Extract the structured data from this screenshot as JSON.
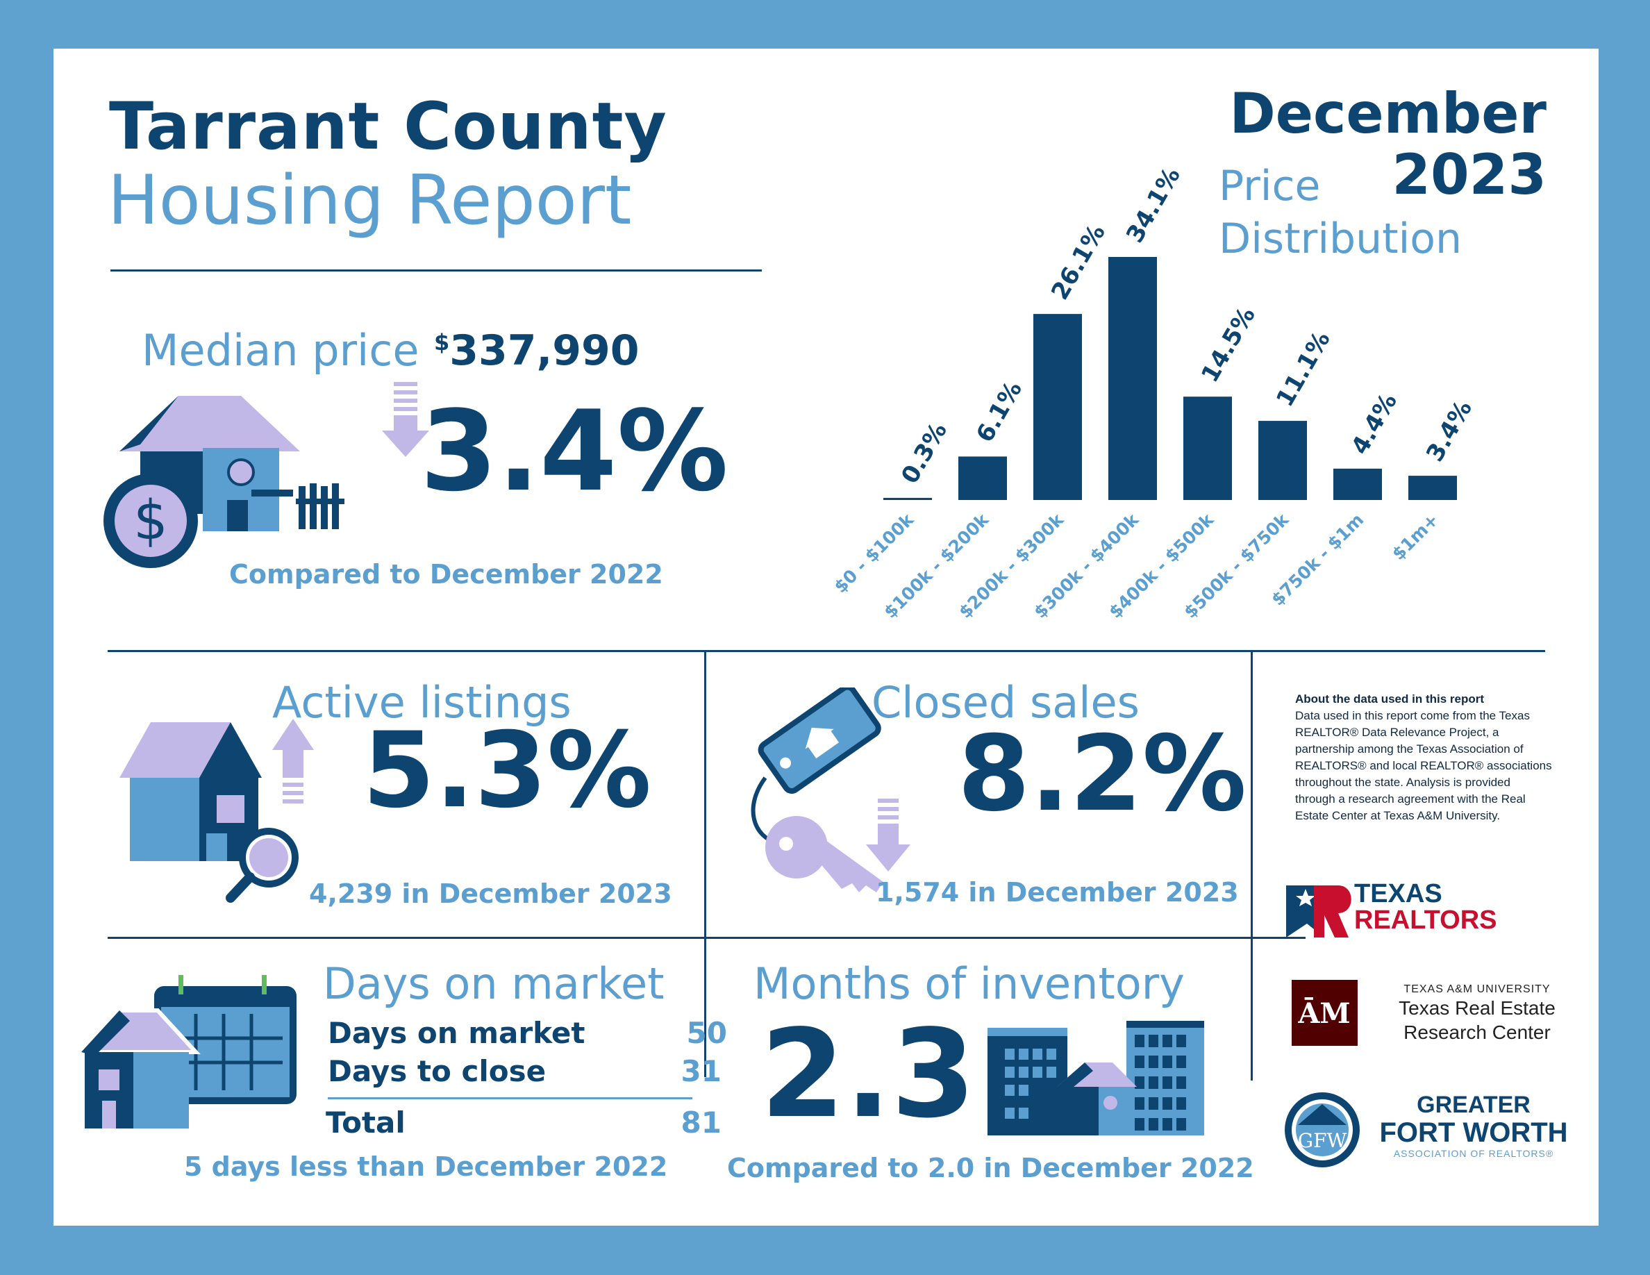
{
  "header": {
    "title_line1": "Tarrant County",
    "title_line2": "Housing Report",
    "month": "December",
    "year": "2023"
  },
  "median": {
    "label": "Median price",
    "currency": "$",
    "value": "337,990",
    "change": "3.4%",
    "direction": "down",
    "compare": "Compared to December 2022"
  },
  "price_distribution": {
    "title_line1": "Price",
    "title_line2": "Distribution"
  },
  "chart_data": {
    "type": "bar",
    "title": "Price Distribution",
    "categories": [
      "$0 - $100k",
      "$100k - $200k",
      "$200k - $300k",
      "$300k - $400k",
      "$400k - $500k",
      "$500k - $750k",
      "$750k - $1m",
      "$1m+"
    ],
    "values": [
      0.3,
      6.1,
      26.1,
      34.1,
      14.5,
      11.1,
      4.4,
      3.4
    ],
    "value_labels": [
      "0.3%",
      "6.1%",
      "26.1%",
      "34.1%",
      "14.5%",
      "11.1%",
      "4.4%",
      "3.4%"
    ],
    "bar_color": "#0e4470",
    "ylim": [
      0,
      36
    ],
    "grid": false
  },
  "active_listings": {
    "label": "Active listings",
    "change": "5.3%",
    "direction": "up",
    "detail": "4,239 in December 2023"
  },
  "closed_sales": {
    "label": "Closed sales",
    "change": "8.2%",
    "direction": "down",
    "detail": "1,574 in December 2023"
  },
  "about": {
    "title": "About the data used in this report",
    "body": "Data used in this report come from the Texas REALTOR® Data Relevance Project, a partnership among the Texas Association of REALTORS® and local REALTOR® associations throughout the state. Analysis is provided through a research agreement with the Real Estate Center at Texas A&M University."
  },
  "days_on_market": {
    "label": "Days on market",
    "rows": [
      {
        "name": "Days on market",
        "value": "50"
      },
      {
        "name": "Days to close",
        "value": "31"
      }
    ],
    "total_label": "Total",
    "total_value": "81",
    "compare": "5 days less than December 2022"
  },
  "months_inventory": {
    "label": "Months of inventory",
    "value": "2.3",
    "compare": "Compared to 2.0 in December 2022"
  },
  "logos": {
    "texas_realtors_line1": "TEXAS",
    "texas_realtors_line2": "REALTORS",
    "tamu_univ": "TEXAS A&M UNIVERSITY",
    "tamu_center_line1": "Texas Real Estate",
    "tamu_center_line2": "Research Center",
    "gfw_line1": "GREATER",
    "gfw_line2": "FORT WORTH",
    "gfw_line3": "ASSOCIATION OF REALTORS®"
  },
  "colors": {
    "navy": "#0e4470",
    "light_blue": "#5b9fd0",
    "lavender": "#c2b8e8",
    "frame": "#5fa1cf",
    "texas_red": "#c8102e",
    "tamu_maroon": "#500000"
  }
}
